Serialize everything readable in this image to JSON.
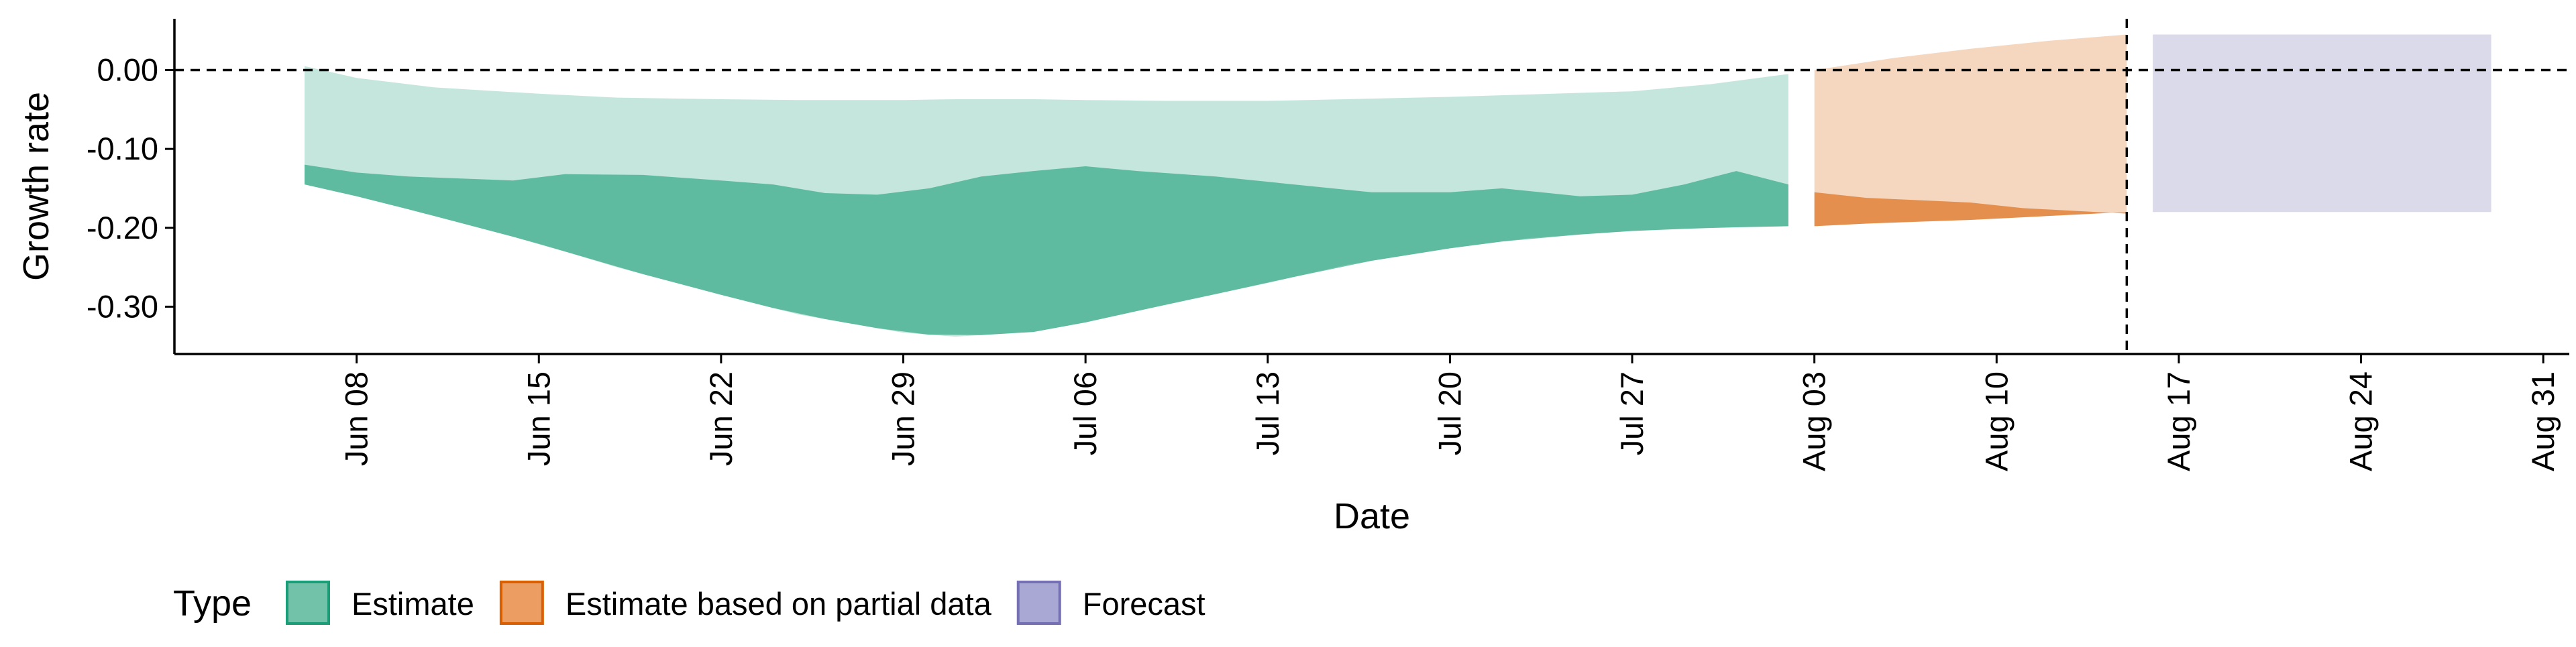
{
  "chart_data": {
    "type": "area",
    "xlabel": "Date",
    "ylabel": "Growth rate",
    "ylim": [
      -0.36,
      0.065
    ],
    "xlim": [
      "2020-06-01",
      "2020-09-01"
    ],
    "y_ticks": [
      {
        "value": 0.0,
        "label": "0.00"
      },
      {
        "value": -0.1,
        "label": "-0.10"
      },
      {
        "value": -0.2,
        "label": "-0.20"
      },
      {
        "value": -0.3,
        "label": "-0.30"
      }
    ],
    "x_ticks": [
      {
        "value": "2020-06-08",
        "label": "Jun 08"
      },
      {
        "value": "2020-06-15",
        "label": "Jun 15"
      },
      {
        "value": "2020-06-22",
        "label": "Jun 22"
      },
      {
        "value": "2020-06-29",
        "label": "Jun 29"
      },
      {
        "value": "2020-07-06",
        "label": "Jul 06"
      },
      {
        "value": "2020-07-13",
        "label": "Jul 13"
      },
      {
        "value": "2020-07-20",
        "label": "Jul 20"
      },
      {
        "value": "2020-07-27",
        "label": "Jul 27"
      },
      {
        "value": "2020-08-03",
        "label": "Aug 03"
      },
      {
        "value": "2020-08-10",
        "label": "Aug 10"
      },
      {
        "value": "2020-08-17",
        "label": "Aug 17"
      },
      {
        "value": "2020-08-24",
        "label": "Aug 24"
      },
      {
        "value": "2020-08-31",
        "label": "Aug 31"
      }
    ],
    "reference_lines": {
      "horizontal_y": 0.0,
      "vertical_x": "2020-08-15",
      "style": "dashed"
    },
    "grid": false,
    "legend": {
      "title": "Type",
      "position": "bottom-left",
      "entries": [
        {
          "label": "Estimate",
          "fill": "#71c2a9",
          "border": "#1b9e77"
        },
        {
          "label": "Estimate based on partial data",
          "fill": "#ec9e62",
          "border": "#d95f02"
        },
        {
          "label": "Forecast",
          "fill": "#a9a7d4",
          "border": "#7570b3"
        }
      ]
    },
    "series": [
      {
        "name": "Estimate",
        "color": "#1b9e77",
        "outer_x": [
          "2020-06-06",
          "2020-06-08",
          "2020-06-11",
          "2020-06-15",
          "2020-06-18",
          "2020-06-22",
          "2020-06-25",
          "2020-06-29",
          "2020-07-01",
          "2020-07-04",
          "2020-07-06",
          "2020-07-09",
          "2020-07-13",
          "2020-07-16",
          "2020-07-20",
          "2020-07-23",
          "2020-07-27",
          "2020-07-30",
          "2020-08-02"
        ],
        "outer_lower": [
          -0.145,
          -0.16,
          -0.185,
          -0.22,
          -0.25,
          -0.285,
          -0.31,
          -0.333,
          -0.338,
          -0.332,
          -0.32,
          -0.298,
          -0.27,
          -0.247,
          -0.226,
          -0.213,
          -0.204,
          -0.2,
          -0.198
        ],
        "outer_upper": [
          0.005,
          -0.01,
          -0.022,
          -0.03,
          -0.035,
          -0.037,
          -0.038,
          -0.038,
          -0.037,
          -0.037,
          -0.038,
          -0.039,
          -0.039,
          -0.037,
          -0.034,
          -0.031,
          -0.027,
          -0.018,
          -0.005
        ],
        "inner_x": [
          "2020-06-06",
          "2020-06-08",
          "2020-06-10",
          "2020-06-14",
          "2020-06-16",
          "2020-06-19",
          "2020-06-22",
          "2020-06-24",
          "2020-06-26",
          "2020-06-28",
          "2020-06-30",
          "2020-07-02",
          "2020-07-04",
          "2020-07-06",
          "2020-07-08",
          "2020-07-11",
          "2020-07-14",
          "2020-07-17",
          "2020-07-20",
          "2020-07-22",
          "2020-07-25",
          "2020-07-27",
          "2020-07-29",
          "2020-07-31",
          "2020-08-02"
        ],
        "inner_upper": [
          -0.12,
          -0.13,
          -0.135,
          -0.14,
          -0.132,
          -0.133,
          -0.14,
          -0.145,
          -0.156,
          -0.158,
          -0.15,
          -0.135,
          -0.128,
          -0.122,
          -0.128,
          -0.135,
          -0.145,
          -0.155,
          -0.155,
          -0.15,
          -0.16,
          -0.158,
          -0.145,
          -0.128,
          -0.145
        ],
        "inner_lower_equals": "outer_lower"
      },
      {
        "name": "Estimate based on partial data",
        "color": "#d95f02",
        "outer_x": [
          "2020-08-03",
          "2020-08-06",
          "2020-08-09",
          "2020-08-12",
          "2020-08-15"
        ],
        "outer_lower": [
          -0.198,
          -0.193,
          -0.19,
          -0.185,
          -0.18
        ],
        "outer_upper": [
          0.0,
          0.015,
          0.027,
          0.037,
          0.045
        ],
        "inner_x": [
          "2020-08-03",
          "2020-08-05",
          "2020-08-09",
          "2020-08-11",
          "2020-08-15"
        ],
        "inner_upper": [
          -0.155,
          -0.162,
          -0.168,
          -0.175,
          -0.182
        ],
        "inner_lower_equals": "outer_lower"
      },
      {
        "name": "Forecast",
        "color": "#7570b3",
        "outer_x": [
          "2020-08-16",
          "2020-08-29"
        ],
        "outer_lower": [
          -0.18,
          -0.18
        ],
        "outer_upper": [
          0.045,
          0.045
        ]
      }
    ]
  }
}
